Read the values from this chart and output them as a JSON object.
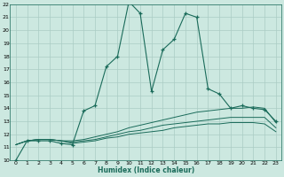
{
  "xlabel": "Humidex (Indice chaleur)",
  "bg_color": "#cce8e0",
  "grid_color": "#aaccC4",
  "line_color": "#1a6b5a",
  "xlim": [
    -0.5,
    23.5
  ],
  "ylim": [
    10,
    22
  ],
  "xticks": [
    0,
    1,
    2,
    3,
    4,
    5,
    6,
    7,
    8,
    9,
    10,
    11,
    12,
    13,
    14,
    15,
    16,
    17,
    18,
    19,
    20,
    21,
    22,
    23
  ],
  "yticks": [
    10,
    11,
    12,
    13,
    14,
    15,
    16,
    17,
    18,
    19,
    20,
    21,
    22
  ],
  "main_x": [
    0,
    1,
    2,
    3,
    4,
    5,
    6,
    7,
    8,
    9,
    10,
    11,
    12,
    13,
    14,
    15,
    16,
    17,
    18,
    19,
    20,
    21,
    22,
    23
  ],
  "main_y": [
    10.0,
    11.5,
    11.5,
    11.5,
    11.3,
    11.2,
    13.8,
    14.2,
    17.2,
    18.0,
    22.2,
    21.3,
    15.3,
    18.5,
    19.3,
    21.3,
    21.0,
    15.5,
    15.1,
    14.0,
    14.2,
    14.0,
    13.9,
    13.0
  ],
  "line2_x": [
    0,
    1,
    2,
    3,
    4,
    5,
    6,
    7,
    8,
    9,
    10,
    11,
    12,
    13,
    14,
    15,
    16,
    17,
    18,
    19,
    20,
    21,
    22,
    23
  ],
  "line2_y": [
    11.2,
    11.5,
    11.6,
    11.6,
    11.5,
    11.5,
    11.6,
    11.8,
    12.0,
    12.2,
    12.5,
    12.7,
    12.9,
    13.1,
    13.3,
    13.5,
    13.7,
    13.8,
    13.9,
    14.0,
    14.0,
    14.1,
    14.0,
    12.9
  ],
  "line3_x": [
    0,
    1,
    2,
    3,
    4,
    5,
    6,
    7,
    8,
    9,
    10,
    11,
    12,
    13,
    14,
    15,
    16,
    17,
    18,
    19,
    20,
    21,
    22,
    23
  ],
  "line3_y": [
    11.2,
    11.5,
    11.6,
    11.6,
    11.5,
    11.4,
    11.5,
    11.6,
    11.8,
    12.0,
    12.2,
    12.3,
    12.5,
    12.7,
    12.8,
    12.9,
    13.0,
    13.1,
    13.2,
    13.3,
    13.3,
    13.3,
    13.3,
    12.5
  ],
  "line4_x": [
    0,
    1,
    2,
    3,
    4,
    5,
    6,
    7,
    8,
    9,
    10,
    11,
    12,
    13,
    14,
    15,
    16,
    17,
    18,
    19,
    20,
    21,
    22,
    23
  ],
  "line4_y": [
    11.2,
    11.5,
    11.6,
    11.6,
    11.5,
    11.3,
    11.4,
    11.5,
    11.7,
    11.8,
    12.0,
    12.1,
    12.2,
    12.3,
    12.5,
    12.6,
    12.7,
    12.8,
    12.8,
    12.9,
    12.9,
    12.9,
    12.8,
    12.2
  ]
}
